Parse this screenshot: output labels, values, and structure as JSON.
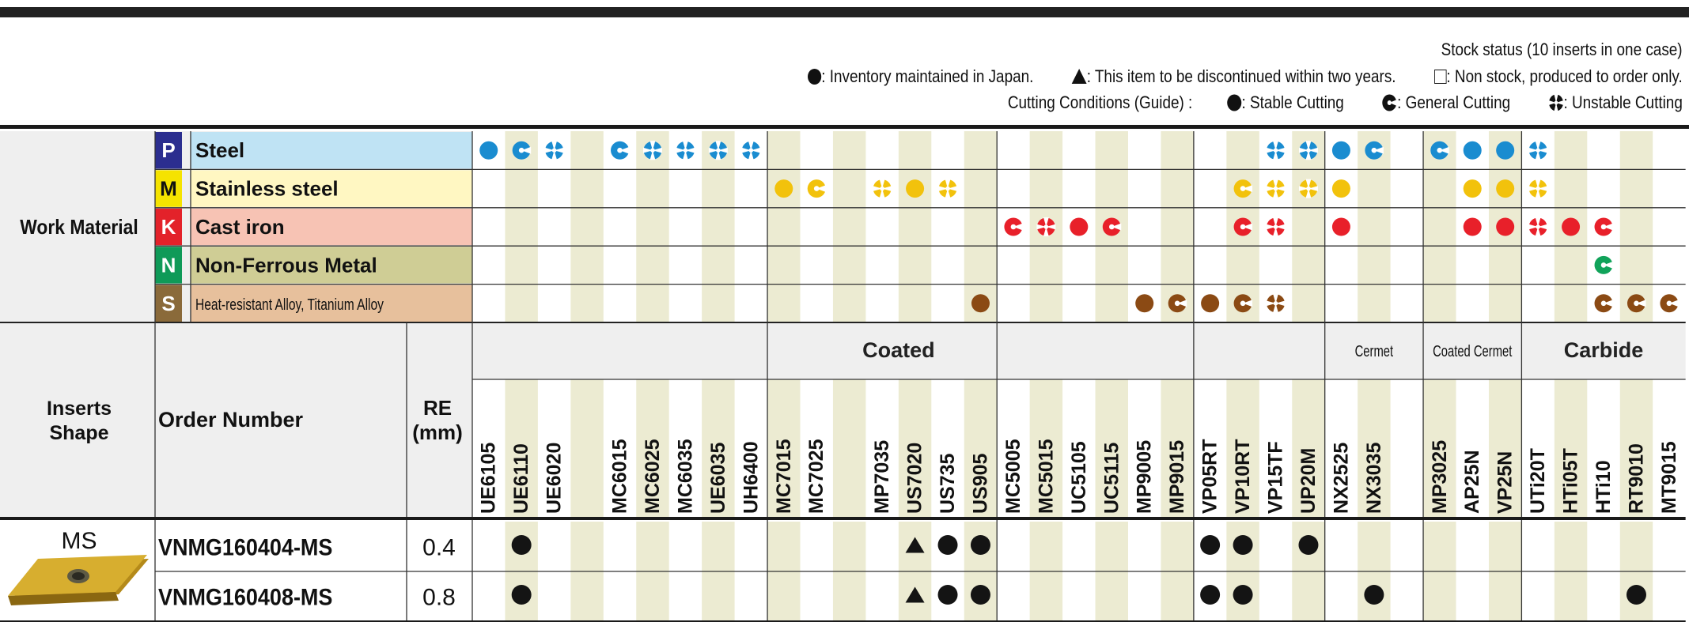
{
  "legend": {
    "stock_status": "Stock status (10 inserts in one case)",
    "inventory": ": Inventory maintained in Japan.",
    "discontinued": ": This item to be discontinued within two years.",
    "nonstock": ": Non stock, produced to order only.",
    "cutting_conditions_label": "Cutting Conditions (Guide) :",
    "stable": ": Stable Cutting",
    "general": ": General Cutting",
    "unstable": ": Unstable Cutting"
  },
  "work_material": {
    "label": "Work Material",
    "rows": [
      {
        "code": "P",
        "name": "Steel",
        "chip_color": "#2b2e8f",
        "bg": "#bfe3f4",
        "mark_color": "#1a8cd0",
        "small": false
      },
      {
        "code": "M",
        "name": "Stainless steel",
        "chip_color": "#f5e300",
        "bg": "#fff7c2",
        "mark_color": "#f2c20c",
        "small": false
      },
      {
        "code": "K",
        "name": "Cast iron",
        "chip_color": "#e3222a",
        "bg": "#f7c3b4",
        "mark_color": "#e8202a",
        "small": false
      },
      {
        "code": "N",
        "name": "Non-Ferrous Metal",
        "chip_color": "#0f9a58",
        "bg": "#cfcd95",
        "mark_color": "#11a35a",
        "small": false
      },
      {
        "code": "S",
        "name": "Heat-resistant Alloy, Titanium Alloy",
        "chip_color": "#8a6a3a",
        "bg": "#e7c09c",
        "mark_color": "#8b4a14",
        "small": true
      }
    ]
  },
  "table_header": {
    "inserts_shape": "Inserts Shape",
    "order_number": "Order Number",
    "re_line1": "RE",
    "re_line2": "(mm)"
  },
  "groups": [
    {
      "label": "Coated",
      "start": 0,
      "end": 26,
      "small": false
    },
    {
      "label": "Cermet",
      "start": 26,
      "end": 29,
      "small": true
    },
    {
      "label": "Coated Cermet",
      "start": 29,
      "end": 32,
      "small": true
    },
    {
      "label": "Carbide",
      "start": 32,
      "end": 37,
      "small": false
    }
  ],
  "grades": [
    "UE6105",
    "UE6110",
    "UE6020",
    "",
    "MC6015",
    "MC6025",
    "MC6035",
    "UE6035",
    "UH6400",
    "MC7015",
    "MC7025",
    "",
    "MP7035",
    "US7020",
    "US735",
    "US905",
    "MC5005",
    "MC5015",
    "UC5105",
    "UC5115",
    "MP9005",
    "MP9015",
    "VP05RT",
    "VP10RT",
    "VP15TF",
    "UP20M",
    "NX2525",
    "NX3035",
    "",
    "MP3025",
    "AP25N",
    "VP25N",
    "UTi20T",
    "HTi05T",
    "HTi10",
    "RT9010",
    "MT9015"
  ],
  "shaded_columns": [
    1,
    3,
    5,
    7,
    9,
    11,
    13,
    15,
    17,
    19,
    21,
    23,
    25,
    27,
    29,
    31,
    33,
    35
  ],
  "group_boundaries": [
    9,
    16,
    22,
    26,
    29,
    32
  ],
  "cutting_marks": {
    "P": [
      [
        0,
        "stable"
      ],
      [
        1,
        "general"
      ],
      [
        2,
        "unstable"
      ],
      [
        4,
        "general"
      ],
      [
        5,
        "unstable"
      ],
      [
        6,
        "unstable"
      ],
      [
        7,
        "unstable"
      ],
      [
        8,
        "unstable"
      ],
      [
        24,
        "unstable"
      ],
      [
        25,
        "unstable"
      ],
      [
        26,
        "stable"
      ],
      [
        27,
        "general"
      ],
      [
        29,
        "general"
      ],
      [
        30,
        "stable"
      ],
      [
        31,
        "stable"
      ],
      [
        32,
        "unstable"
      ]
    ],
    "M": [
      [
        9,
        "stable"
      ],
      [
        10,
        "general"
      ],
      [
        12,
        "unstable"
      ],
      [
        13,
        "stable"
      ],
      [
        14,
        "unstable"
      ],
      [
        23,
        "general"
      ],
      [
        24,
        "unstable"
      ],
      [
        25,
        "unstable"
      ],
      [
        26,
        "stable"
      ],
      [
        30,
        "stable"
      ],
      [
        31,
        "stable"
      ],
      [
        32,
        "unstable"
      ]
    ],
    "K": [
      [
        16,
        "general"
      ],
      [
        17,
        "unstable"
      ],
      [
        18,
        "stable"
      ],
      [
        19,
        "general"
      ],
      [
        23,
        "general"
      ],
      [
        24,
        "unstable"
      ],
      [
        26,
        "stable"
      ],
      [
        30,
        "stable"
      ],
      [
        31,
        "stable"
      ],
      [
        32,
        "unstable"
      ],
      [
        33,
        "stable"
      ],
      [
        34,
        "general"
      ]
    ],
    "N": [
      [
        34,
        "general"
      ]
    ],
    "S": [
      [
        15,
        "stable"
      ],
      [
        20,
        "stable"
      ],
      [
        21,
        "general"
      ],
      [
        22,
        "stable"
      ],
      [
        23,
        "general"
      ],
      [
        24,
        "unstable"
      ],
      [
        34,
        "general"
      ],
      [
        35,
        "general"
      ],
      [
        36,
        "general"
      ]
    ]
  },
  "inserts": {
    "shape_label": "MS",
    "rows": [
      {
        "order_number": "VNMG160404-MS",
        "re": "0.4",
        "stock": [
          [
            1,
            "inventory"
          ],
          [
            13,
            "discontinued"
          ],
          [
            14,
            "inventory"
          ],
          [
            15,
            "inventory"
          ],
          [
            22,
            "inventory"
          ],
          [
            23,
            "inventory"
          ],
          [
            25,
            "inventory"
          ]
        ]
      },
      {
        "order_number": "VNMG160408-MS",
        "re": "0.8",
        "stock": [
          [
            1,
            "inventory"
          ],
          [
            13,
            "discontinued"
          ],
          [
            14,
            "inventory"
          ],
          [
            15,
            "inventory"
          ],
          [
            22,
            "inventory"
          ],
          [
            23,
            "inventory"
          ],
          [
            27,
            "inventory"
          ],
          [
            35,
            "inventory"
          ]
        ]
      }
    ]
  },
  "colors": {
    "shade": "#ecebd2",
    "header_bg": "#efefef",
    "rule": "#1a1a1a",
    "mark_black": "#141414"
  }
}
